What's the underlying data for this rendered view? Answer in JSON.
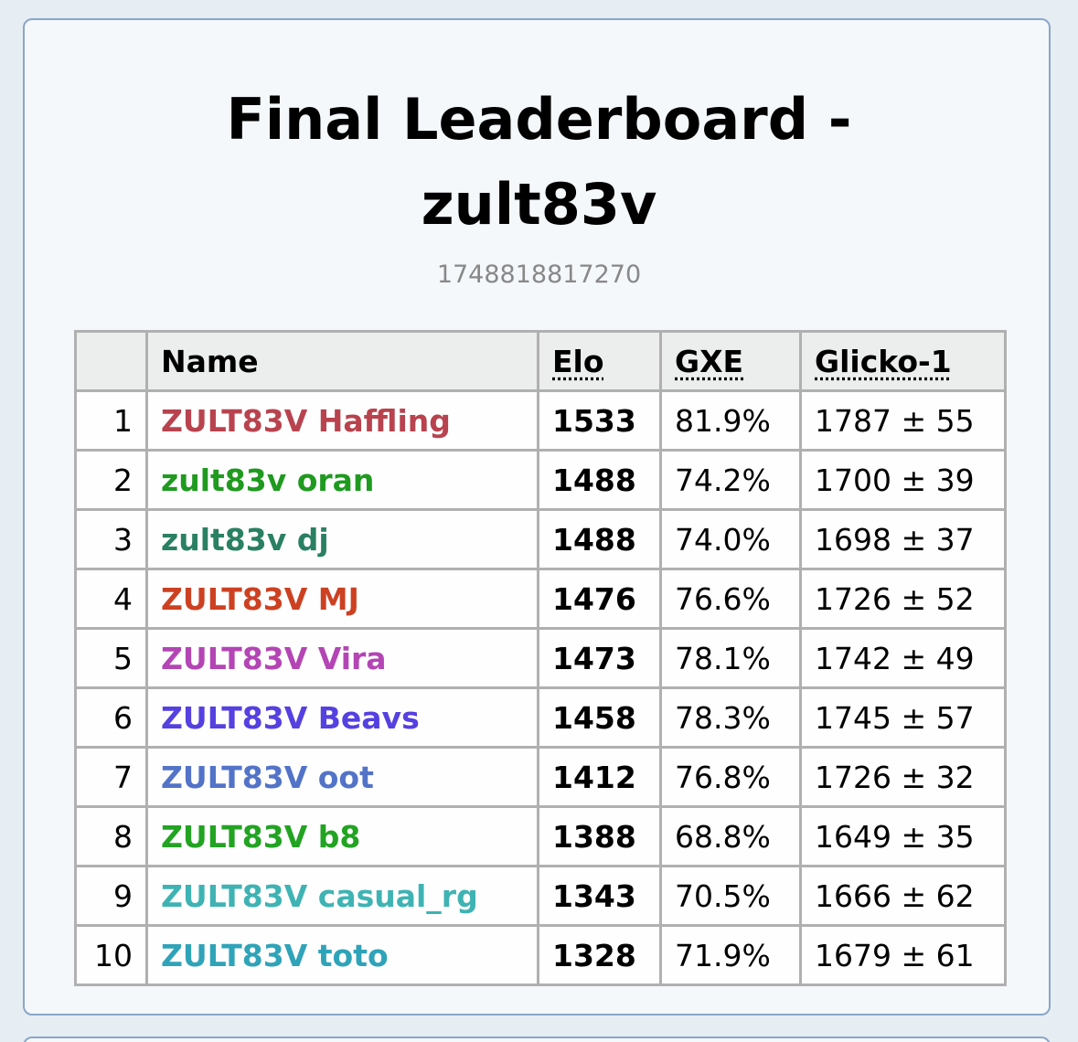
{
  "header": {
    "title": "Final Leaderboard - zult83v",
    "subtitle": "1748818817270"
  },
  "table": {
    "columns": [
      "Name",
      "Elo",
      "GXE",
      "Glicko-1"
    ],
    "rows": [
      {
        "rank": 1,
        "name": "ZULT83V Haffling",
        "color": "#b8434e",
        "elo": 1533,
        "gxe": "81.9%",
        "glicko": "1787 ± 55"
      },
      {
        "rank": 2,
        "name": "zult83v oran",
        "color": "#1f9a1f",
        "elo": 1488,
        "gxe": "74.2%",
        "glicko": "1700 ± 39"
      },
      {
        "rank": 3,
        "name": "zult83v dj",
        "color": "#2a8062",
        "elo": 1488,
        "gxe": "74.0%",
        "glicko": "1698 ± 37"
      },
      {
        "rank": 4,
        "name": "ZULT83V MJ",
        "color": "#cc4122",
        "elo": 1476,
        "gxe": "76.6%",
        "glicko": "1726 ± 52"
      },
      {
        "rank": 5,
        "name": "ZULT83V Vira",
        "color": "#b445b4",
        "elo": 1473,
        "gxe": "78.1%",
        "glicko": "1742 ± 49"
      },
      {
        "rank": 6,
        "name": "ZULT83V Beavs",
        "color": "#5540e0",
        "elo": 1458,
        "gxe": "78.3%",
        "glicko": "1745 ± 57"
      },
      {
        "rank": 7,
        "name": "ZULT83V oot",
        "color": "#5373c8",
        "elo": 1412,
        "gxe": "76.8%",
        "glicko": "1726 ± 32"
      },
      {
        "rank": 8,
        "name": "ZULT83V b8",
        "color": "#22a322",
        "elo": 1388,
        "gxe": "68.8%",
        "glicko": "1649 ± 35"
      },
      {
        "rank": 9,
        "name": "ZULT83V casual_rg",
        "color": "#3fb3b3",
        "elo": 1343,
        "gxe": "70.5%",
        "glicko": "1666 ± 62"
      },
      {
        "rank": 10,
        "name": "ZULT83V toto",
        "color": "#2fa3b8",
        "elo": 1328,
        "gxe": "71.9%",
        "glicko": "1679 ± 61"
      }
    ]
  }
}
